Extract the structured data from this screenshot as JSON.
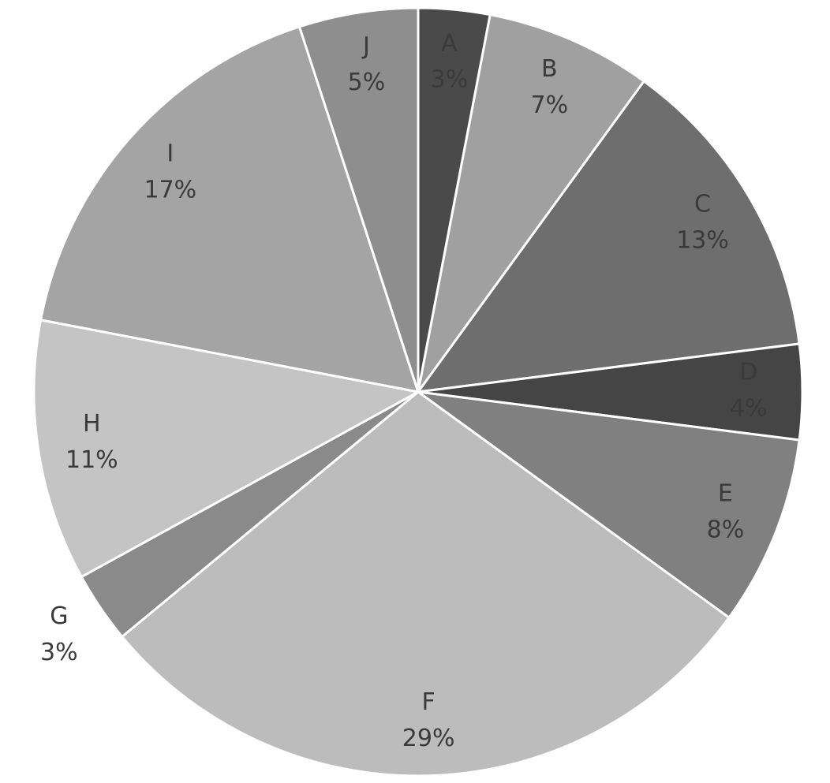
{
  "chart_data": {
    "type": "pie",
    "categories": [
      "A",
      "B",
      "C",
      "D",
      "E",
      "F",
      "G",
      "H",
      "I",
      "J"
    ],
    "values": [
      3,
      7,
      13,
      4,
      8,
      29,
      3,
      11,
      17,
      5
    ],
    "value_labels": [
      "3%",
      "7%",
      "13%",
      "4%",
      "8%",
      "29%",
      "3%",
      "11%",
      "17%",
      "5%"
    ],
    "colors": [
      "#4a4a4a",
      "#a0a0a0",
      "#6e6e6e",
      "#454545",
      "#808080",
      "#bcbcbc",
      "#8a8a8a",
      "#c4c4c4",
      "#a4a4a4",
      "#8e8e8e"
    ]
  }
}
